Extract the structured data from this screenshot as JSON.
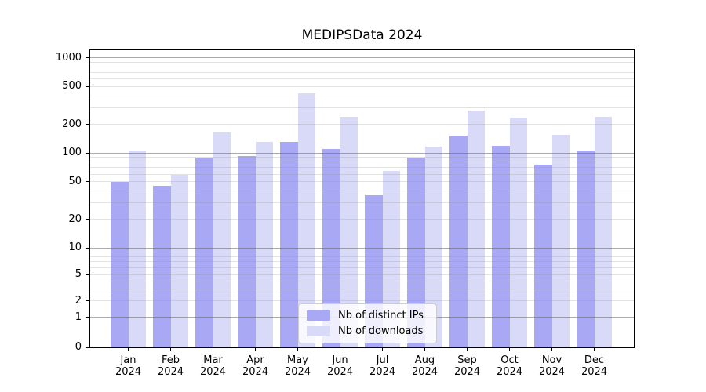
{
  "title": "MEDIPSData 2024",
  "chart_data": {
    "type": "bar",
    "title": "MEDIPSData 2024",
    "categories": [
      "Jan 2024",
      "Feb 2024",
      "Mar 2024",
      "Apr 2024",
      "May 2024",
      "Jun 2024",
      "Jul 2024",
      "Aug 2024",
      "Sep 2024",
      "Oct 2024",
      "Nov 2024",
      "Dec 2024"
    ],
    "series": [
      {
        "name": "Nb of distinct IPs",
        "color": "#a8a8f5",
        "values": [
          50,
          45,
          90,
          93,
          132,
          110,
          36,
          90,
          152,
          118,
          75,
          106
        ]
      },
      {
        "name": "Nb of downloads",
        "color": "#d9d9f8",
        "values": [
          106,
          59,
          166,
          131,
          425,
          241,
          65,
          116,
          282,
          238,
          155,
          241
        ]
      }
    ],
    "xlabel": "",
    "ylabel": "",
    "y_axis": {
      "scale": "symlog",
      "tick_values": [
        1000,
        500,
        200,
        100,
        50,
        20,
        10,
        5,
        2,
        1,
        0
      ],
      "tick_labels": [
        "1000",
        "500",
        "200",
        "100",
        "50",
        "20",
        "10",
        "5",
        "2",
        "1",
        "0"
      ],
      "minor_grid_values": [
        2,
        3,
        4,
        5,
        6,
        7,
        8,
        9,
        20,
        30,
        40,
        50,
        60,
        70,
        80,
        90,
        200,
        300,
        400,
        500,
        600,
        700,
        800,
        900
      ],
      "major_grid_values": [
        1,
        10,
        100,
        1000
      ]
    },
    "grid": "on (log major + minor)",
    "legend_position": "lower center"
  },
  "legend": {
    "items": [
      {
        "label": "Nb of distinct IPs",
        "color": "#a8a8f5"
      },
      {
        "label": "Nb of downloads",
        "color": "#d9d9f8"
      }
    ]
  },
  "colors": {
    "bar_ips": "#a8a8f5",
    "bar_downloads": "#d9d9f8",
    "grid_major": "rgba(100,100,100,0.55)",
    "grid_minor": "rgba(150,150,150,0.28)",
    "axis_spine": "#000000",
    "background": "#ffffff"
  }
}
